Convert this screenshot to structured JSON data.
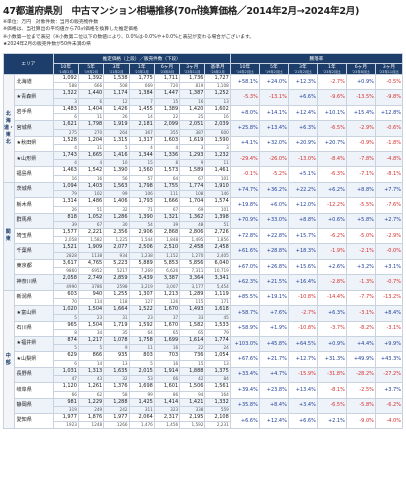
{
  "title": "47都道府県別　中古マンション相場推移(70㎡換算価格／2014年2月→2024年2月)",
  "notes": [
    "※単位：万円　対象件数：当月の販売物件数",
    "※価格は、当社算出の平均値から70㎡価格を換算した推定価格",
    "※小数第一位まで表記（※小数第二位以下の数値により、0.0%は-0.0%や+0.0%と表記が変わる場合がございます。",
    "★2024年2月の販売件数が50件未満の県"
  ],
  "header": {
    "area": "エリア",
    "price_group": "推定価格（上段）／販売件数（下段）",
    "rate_group": "騰落率",
    "price_cols": [
      {
        "label": "10年",
        "sub": "'14年2月"
      },
      {
        "label": "5年",
        "sub": "'19年2月"
      },
      {
        "label": "3年",
        "sub": "'21年2月"
      },
      {
        "label": "1年",
        "sub": "'23年2月"
      },
      {
        "label": "6ヶ月",
        "sub": "'23年8月"
      },
      {
        "label": "3ヶ月",
        "sub": "'23年11月"
      },
      {
        "label": "基準月",
        "sub": "'24年2月"
      }
    ],
    "rate_cols": [
      {
        "label": "10年",
        "sub": "'14年2月比"
      },
      {
        "label": "5年",
        "sub": "'19年2月比"
      },
      {
        "label": "3年",
        "sub": "'21年2月比"
      },
      {
        "label": "1年",
        "sub": "'23年2月比"
      },
      {
        "label": "6ヶ月",
        "sub": "'23年8月比"
      },
      {
        "label": "3ヶ月",
        "sub": "'23年11月比"
      }
    ]
  },
  "regions": [
    {
      "name": "北海道・東北",
      "rows": [
        {
          "pref": "北海道",
          "prices": [
            "1,092",
            "1,392",
            "1,538",
            "1,775",
            "1,711",
            "1,736",
            "1,727"
          ],
          "counts": [
            "588",
            "666",
            "508",
            "669",
            "720",
            "819",
            "1,108"
          ],
          "rates": [
            "+58.1%",
            "+24.0%",
            "+12.3%",
            "-2.7%",
            "+0.9%",
            "-0.5%"
          ]
        },
        {
          "pref": "★青森県",
          "prices": [
            "1,322",
            "1,440",
            "1,174",
            "1,384",
            "1,447",
            "1,387",
            "1,252"
          ],
          "counts": [
            "3",
            "6",
            "12",
            "7",
            "15",
            "16",
            "13"
          ],
          "rates": [
            "-5.3%",
            "-13.1%",
            "+6.6%",
            "-9.6%",
            "-13.5%",
            "-9.8%"
          ]
        },
        {
          "pref": "岩手県",
          "prices": [
            "1,483",
            "1,404",
            "1,426",
            "1,455",
            "1,389",
            "1,420",
            "1,602"
          ],
          "counts": [
            "6",
            "11",
            "26",
            "14",
            "22",
            "25",
            "16"
          ],
          "rates": [
            "+8.0%",
            "+14.1%",
            "+12.4%",
            "+10.1%",
            "+15.4%",
            "+12.8%"
          ]
        },
        {
          "pref": "宮城県",
          "prices": [
            "1,621",
            "1,798",
            "1,919",
            "2,181",
            "2,099",
            "2,051",
            "2,039"
          ],
          "counts": [
            "275",
            "270",
            "264",
            "367",
            "355",
            "387",
            "600"
          ],
          "rates": [
            "+25.8%",
            "+13.4%",
            "+6.3%",
            "-6.5%",
            "-2.9%",
            "-0.6%"
          ]
        },
        {
          "pref": "★秋田県",
          "prices": [
            "1,528",
            "1,204",
            "1,315",
            "1,317",
            "1,603",
            "1,619",
            "1,590"
          ],
          "counts": [
            "4",
            "11",
            "5",
            "4",
            "4",
            "3",
            "3"
          ],
          "rates": [
            "+4.1%",
            "+32.0%",
            "+20.9%",
            "+20.7%",
            "-0.9%",
            "-1.8%"
          ]
        },
        {
          "pref": "★山形県",
          "prices": [
            "1,743",
            "1,665",
            "1,416",
            "1,344",
            "1,336",
            "1,293",
            "1,232"
          ],
          "counts": [
            "4",
            "4",
            "10",
            "15",
            "8",
            "9",
            "11"
          ],
          "rates": [
            "-29.4%",
            "-26.0%",
            "-13.0%",
            "-8.4%",
            "-7.8%",
            "-4.8%"
          ]
        },
        {
          "pref": "福島県",
          "prices": [
            "1,463",
            "1,542",
            "1,390",
            "1,560",
            "1,573",
            "1,589",
            "1,461"
          ],
          "counts": [
            "16",
            "16",
            "56",
            "57",
            "64",
            "67",
            "101"
          ],
          "rates": [
            "-0.1%",
            "-5.2%",
            "+5.1%",
            "-6.3%",
            "-7.1%",
            "-8.1%"
          ]
        }
      ]
    },
    {
      "name": "関東",
      "rows": [
        {
          "pref": "茨城県",
          "prices": [
            "1,094",
            "1,403",
            "1,563",
            "1,798",
            "1,755",
            "1,774",
            "1,910"
          ],
          "counts": [
            "79",
            "102",
            "99",
            "106",
            "111",
            "108",
            "146"
          ],
          "rates": [
            "+74.7%",
            "+36.2%",
            "+22.2%",
            "+6.2%",
            "+8.8%",
            "+7.7%"
          ]
        },
        {
          "pref": "栃木県",
          "prices": [
            "1,314",
            "1,486",
            "1,406",
            "1,793",
            "1,666",
            "1,704",
            "1,574"
          ],
          "counts": [
            "26",
            "51",
            "32",
            "71",
            "67",
            "69",
            "101"
          ],
          "rates": [
            "+19.8%",
            "+6.0%",
            "+12.0%",
            "-12.2%",
            "-5.5%",
            "-7.6%"
          ]
        },
        {
          "pref": "群馬県",
          "prices": [
            "818",
            "1,052",
            "1,286",
            "1,390",
            "1,321",
            "1,362",
            "1,398"
          ],
          "counts": [
            "39",
            "67",
            "30",
            "54",
            "39",
            "48",
            "51"
          ],
          "rates": [
            "+70.9%",
            "+33.0%",
            "+8.8%",
            "+0.6%",
            "+5.8%",
            "+2.7%"
          ]
        },
        {
          "pref": "埼玉県",
          "prices": [
            "1,577",
            "2,221",
            "2,356",
            "2,906",
            "2,868",
            "2,806",
            "2,726"
          ],
          "counts": [
            "2,058",
            "1,582",
            "1,225",
            "1,544",
            "1,848",
            "1,495",
            "1,856"
          ],
          "rates": [
            "+72.8%",
            "+22.8%",
            "+15.7%",
            "-6.2%",
            "-5.0%",
            "-2.9%"
          ]
        },
        {
          "pref": "千葉県",
          "prices": [
            "1,521",
            "1,909",
            "2,077",
            "2,506",
            "2,510",
            "2,458",
            "2,458"
          ],
          "counts": [
            "2828",
            "1138",
            "934",
            "1,238",
            "1,152",
            "1,270",
            "2,405"
          ],
          "rates": [
            "+61.6%",
            "+28.8%",
            "+18.3%",
            "-1.9%",
            "-2.1%",
            "-0.0%"
          ]
        },
        {
          "pref": "東京都",
          "prices": [
            "3,617",
            "4,765",
            "5,223",
            "5,889",
            "5,853",
            "5,856",
            "6,040"
          ],
          "counts": [
            "9860",
            "6952",
            "5217",
            "7,269",
            "6,626",
            "7,311",
            "10,719"
          ],
          "rates": [
            "+67.0%",
            "+26.8%",
            "+15.6%",
            "+2.6%",
            "+3.2%",
            "+3.1%"
          ]
        },
        {
          "pref": "神奈川県",
          "prices": [
            "2,058",
            "2,749",
            "2,859",
            "3,439",
            "3,387",
            "3,364",
            "3,341"
          ],
          "counts": [
            "4990",
            "3786",
            "2598",
            "3,219",
            "3,007",
            "3,177",
            "5,454"
          ],
          "rates": [
            "+62.3%",
            "+21.5%",
            "+16.4%",
            "-2.8%",
            "-1.3%",
            "-0.7%"
          ]
        }
      ]
    },
    {
      "name": "中部",
      "rows": [
        {
          "pref": "新潟県",
          "prices": [
            "603",
            "940",
            "1,255",
            "1,307",
            "1,213",
            "1,289",
            "1,119"
          ],
          "counts": [
            "70",
            "114",
            "118",
            "127",
            "126",
            "115",
            "171"
          ],
          "rates": [
            "+85.5%",
            "+19.1%",
            "-10.8%",
            "-14.4%",
            "-7.7%",
            "-13.2%"
          ]
        },
        {
          "pref": "★富山県",
          "prices": [
            "1,020",
            "1,504",
            "1,664",
            "1,522",
            "1,670",
            "1,493",
            "1,618"
          ],
          "counts": [
            "5",
            "23",
            "31",
            "23",
            "37",
            "33",
            "45"
          ],
          "rates": [
            "+58.7%",
            "+7.6%",
            "-2.7%",
            "+6.3%",
            "-3.1%",
            "+8.4%"
          ]
        },
        {
          "pref": "石川県",
          "prices": [
            "965",
            "1,504",
            "1,719",
            "1,592",
            "1,670",
            "1,582",
            "1,533"
          ],
          "counts": [
            "8",
            "34",
            "35",
            "64",
            "65",
            "65",
            "79"
          ],
          "rates": [
            "+58.9%",
            "+1.9%",
            "-10.8%",
            "-3.7%",
            "-8.2%",
            "-3.1%"
          ]
        },
        {
          "pref": "★福井県",
          "prices": [
            "874",
            "1,217",
            "1,078",
            "1,758",
            "1,699",
            "1,614",
            "1,774"
          ],
          "counts": [
            "5",
            "5",
            "9",
            "11",
            "16",
            "22",
            "24"
          ],
          "rates": [
            "+103.0%",
            "+45.8%",
            "+64.5%",
            "+0.9%",
            "+4.4%",
            "+9.9%"
          ]
        },
        {
          "pref": "★山梨県",
          "prices": [
            "629",
            "866",
            "935",
            "803",
            "703",
            "736",
            "1,054"
          ],
          "counts": [
            "6",
            "14",
            "13",
            "5",
            "16",
            "15",
            "13"
          ],
          "rates": [
            "+67.6%",
            "+21.7%",
            "+12.7%",
            "+31.3%",
            "+49.9%",
            "+43.3%"
          ]
        },
        {
          "pref": "長野県",
          "prices": [
            "1,031",
            "1,313",
            "1,635",
            "2,015",
            "1,914",
            "1,888",
            "1,375"
          ],
          "counts": [
            "47",
            "43",
            "32",
            "53",
            "66",
            "42",
            "84"
          ],
          "rates": [
            "+33.4%",
            "+4.7%",
            "-15.9%",
            "-31.8%",
            "-28.2%",
            "-27.2%"
          ]
        },
        {
          "pref": "岐阜県",
          "prices": [
            "1,120",
            "1,261",
            "1,376",
            "1,698",
            "1,601",
            "1,506",
            "1,561"
          ],
          "counts": [
            "66",
            "62",
            "58",
            "99",
            "86",
            "94",
            "164"
          ],
          "rates": [
            "+39.4%",
            "+23.8%",
            "+13.4%",
            "-8.1%",
            "-2.5%",
            "+3.7%"
          ]
        },
        {
          "pref": "静岡県",
          "prices": [
            "981",
            "1,229",
            "1,288",
            "1,425",
            "1,414",
            "1,421",
            "1,332"
          ],
          "counts": [
            "319",
            "249",
            "242",
            "311",
            "323",
            "338",
            "559"
          ],
          "rates": [
            "+35.8%",
            "+8.4%",
            "+3.4%",
            "-6.5%",
            "-5.8%",
            "-6.2%"
          ]
        },
        {
          "pref": "愛知県",
          "prices": [
            "1,977",
            "1,876",
            "1,977",
            "2,064",
            "2,317",
            "2,195",
            "2,108"
          ],
          "counts": [
            "1923",
            "1248",
            "1266",
            "1,476",
            "1,456",
            "1,592",
            "2,231"
          ],
          "rates": [
            "+6.6%",
            "+12.4%",
            "+6.6%",
            "+2.1%",
            "-9.0%",
            "-4.0%"
          ]
        }
      ]
    }
  ]
}
